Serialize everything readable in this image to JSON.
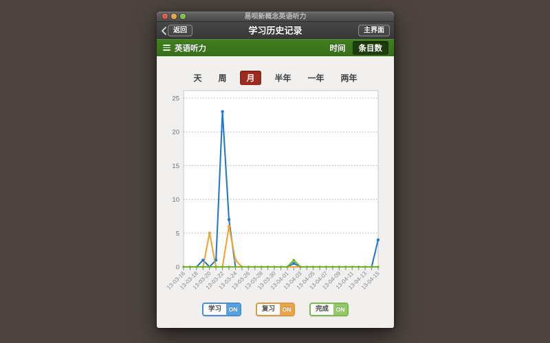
{
  "window": {
    "title": "易呗新概念英语听力",
    "toolbar": {
      "back_label": "返回",
      "title": "学习历史记录",
      "main_label": "主界面"
    },
    "green_bar": {
      "menu_label": "英语听力",
      "time_label": "时间",
      "count_label": "条目数"
    }
  },
  "tabs": [
    {
      "label": "天",
      "selected": false
    },
    {
      "label": "周",
      "selected": false
    },
    {
      "label": "月",
      "selected": true
    },
    {
      "label": "半年",
      "selected": false
    },
    {
      "label": "一年",
      "selected": false
    },
    {
      "label": "两年",
      "selected": false
    }
  ],
  "selected_tab_color": "#9e2b1f",
  "toggles": [
    {
      "label": "学习",
      "state": "ON",
      "color": "#55a1e4",
      "border": "#4a90d0"
    },
    {
      "label": "复习",
      "state": "ON",
      "color": "#eca449",
      "border": "#d99a40"
    },
    {
      "label": "完成",
      "state": "ON",
      "color": "#93c967",
      "border": "#7cb750"
    }
  ],
  "chart_data": {
    "type": "line",
    "title": "",
    "xlabel": "",
    "ylabel": "",
    "ylim": [
      0,
      25
    ],
    "yticks": [
      0,
      5,
      10,
      15,
      20,
      25
    ],
    "grid": "horizontal-dotted",
    "x_label_every": 2,
    "x": [
      "13-03-16",
      "13-03-17",
      "13-03-18",
      "13-03-19",
      "13-03-20",
      "13-03-21",
      "13-03-22",
      "13-03-23",
      "13-03-24",
      "13-03-25",
      "13-03-26",
      "13-03-27",
      "13-03-28",
      "13-03-29",
      "13-03-30",
      "13-03-31",
      "13-04-01",
      "13-04-02",
      "13-04-03",
      "13-04-04",
      "13-04-05",
      "13-04-06",
      "13-04-07",
      "13-04-08",
      "13-04-09",
      "13-04-10",
      "13-04-11",
      "13-04-12",
      "13-04-13",
      "13-04-14",
      "13-04-15"
    ],
    "series": [
      {
        "name": "学习",
        "color": "#2478cc",
        "values": [
          0,
          0,
          0,
          1,
          0,
          1,
          23,
          7,
          0,
          0,
          0,
          0,
          0,
          0,
          0,
          0,
          0,
          0.5,
          0,
          0,
          0,
          0,
          0,
          0,
          0,
          0,
          0,
          0,
          0,
          0,
          4
        ]
      },
      {
        "name": "复习",
        "color": "#f0a435",
        "values": [
          0,
          0,
          0,
          0,
          5,
          0,
          0,
          6,
          1,
          0,
          0,
          0,
          0,
          0,
          0,
          0,
          0,
          0,
          0,
          0,
          0,
          0,
          0,
          0,
          0,
          0,
          0,
          0,
          0,
          0,
          0
        ]
      },
      {
        "name": "完成",
        "color": "#70b32b",
        "values": [
          0,
          0,
          0,
          0,
          0,
          0,
          0,
          0,
          0,
          0,
          0,
          0,
          0,
          0,
          0,
          0,
          0,
          1,
          0,
          0,
          0,
          0,
          0,
          0,
          0,
          0,
          0,
          0,
          0,
          0,
          0
        ]
      }
    ],
    "legend_position": "bottom"
  }
}
